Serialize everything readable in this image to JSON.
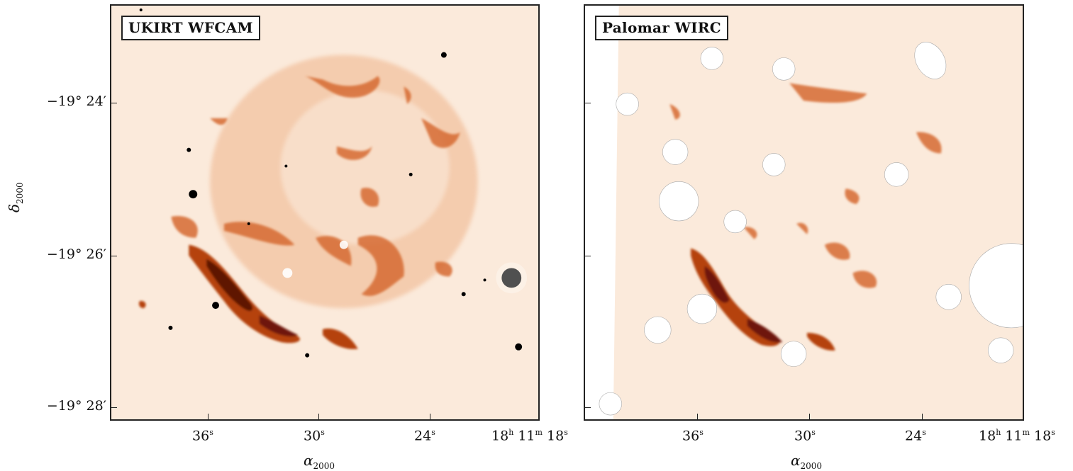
{
  "panels": [
    {
      "title": "UKIRT WFCAM"
    },
    {
      "title": "Palomar WIRC"
    }
  ],
  "y_axis": {
    "label_symbol": "δ",
    "label_sub": "2000",
    "ticks": [
      "−19° 24′",
      "−19° 26′",
      "−19° 28′"
    ]
  },
  "x_axis": {
    "label_symbol": "α",
    "label_sub": "2000",
    "ticks": [
      "36",
      "30",
      "24",
      "18"
    ],
    "tick_unit_sup": "s",
    "last_tick_prefix": "18",
    "last_tick_h": "h",
    "last_tick_mid": "11",
    "last_tick_m": "m"
  },
  "colors": {
    "background": "#fbeadb",
    "faint": "#f3c9a6",
    "medium": "#d9733a",
    "strong": "#b5420f",
    "deep": "#5e1206",
    "star": "#000000"
  }
}
